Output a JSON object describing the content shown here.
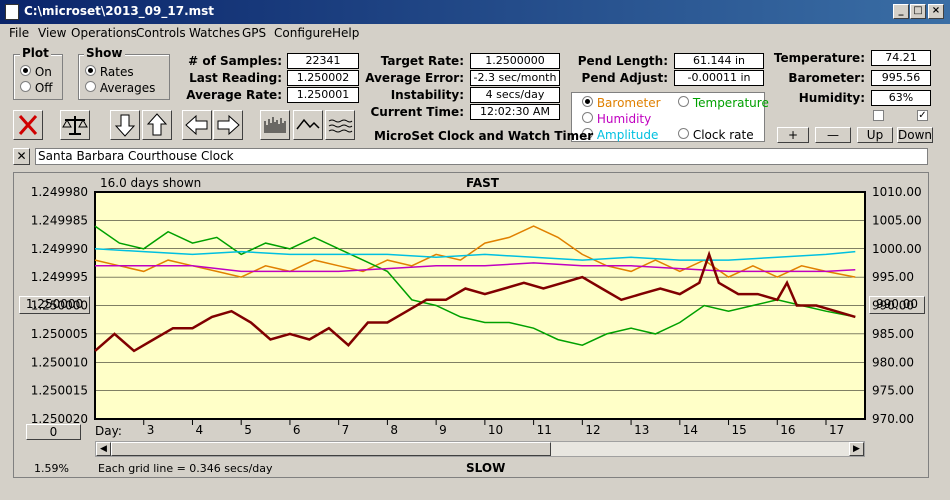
{
  "window": {
    "title": "C:\\microset\\2013_09_17.mst"
  },
  "menu": [
    "File",
    "View",
    "Operations",
    "Controls",
    "Watches",
    "GPS",
    "Configure",
    "Help"
  ],
  "plot_group": {
    "title": "Plot",
    "on": "On",
    "off": "Off",
    "selected": "On"
  },
  "show_group": {
    "title": "Show",
    "rates": "Rates",
    "averages": "Averages",
    "selected": "Rates"
  },
  "stats": {
    "samples_label": "# of Samples:",
    "samples": "22341",
    "last_label": "Last Reading:",
    "last": "1.250002",
    "avg_label": "Average Rate:",
    "avg": "1.250001",
    "target_label": "Target Rate:",
    "target": "1.2500000",
    "avgerr_label": "Average Error:",
    "avgerr": "-2.3 sec/month",
    "instab_label": "Instability:",
    "instab": "4 secs/day",
    "time_label": "Current Time:",
    "time": "12:02:30 AM",
    "pendlen_label": "Pend Length:",
    "pendlen": "61.144 in",
    "pendadj_label": "Pend Adjust:",
    "pendadj": "-0.00011 in",
    "temp_label": "Temperature:",
    "temp": "74.21",
    "baro_label": "Barometer:",
    "baro": "995.56",
    "hum_label": "Humidity:",
    "hum": "63%"
  },
  "subtitle": "MicroSet Clock and Watch Timer",
  "aux": {
    "barometer": "Barometer",
    "temperature": "Temperature",
    "humidity": "Humidity",
    "amplitude": "Amplitude",
    "clockrate": "Clock rate"
  },
  "aux_colors": {
    "barometer": "#e08000",
    "temperature": "#00a000",
    "humidity": "#c000c0",
    "amplitude": "#00c0e0",
    "clockrate": "#000000"
  },
  "aux_buttons": {
    "plus": "+",
    "minus": "—",
    "up": "Up",
    "down": "Down"
  },
  "clock_name": "Santa Barbara Courthouse Clock",
  "chart_labels": {
    "days_shown": "16.0 days shown",
    "fast": "FAST",
    "slow": "SLOW",
    "center_left": "1.250000",
    "center_right": "990.00",
    "zero_btn": "0",
    "pct": "1.59%",
    "grid_note": "Each grid line = 0.346 secs/day",
    "day_label": "Day:"
  },
  "chart_data": {
    "type": "line",
    "x_ticks": [
      "3",
      "4",
      "5",
      "6",
      "7",
      "8",
      "9",
      "10",
      "11",
      "12",
      "13",
      "14",
      "15",
      "16",
      "17"
    ],
    "y_left_ticks": [
      "1.249980",
      "1.249985",
      "1.249990",
      "1.249995",
      "1.250000",
      "1.250005",
      "1.250010",
      "1.250015",
      "1.250020"
    ],
    "y_right_ticks": [
      "1010.00",
      "1005.00",
      "1000.00",
      "995.00",
      "990.00",
      "985.00",
      "980.00",
      "975.00",
      "970.00"
    ],
    "xlim": [
      2.0,
      17.8
    ],
    "ylim_left": [
      1.24998,
      1.25002
    ],
    "ylim_right": [
      970,
      1010
    ],
    "background": "#ffffc8",
    "series": [
      {
        "name": "Barometer",
        "color": "#e08000",
        "axis": "right",
        "x": [
          2.0,
          2.5,
          3,
          3.5,
          4,
          4.5,
          5,
          5.5,
          6,
          6.5,
          7,
          7.5,
          8,
          8.5,
          9,
          9.5,
          10,
          10.5,
          11,
          11.5,
          12,
          12.5,
          13,
          13.5,
          14,
          14.5,
          15,
          15.5,
          16,
          16.5,
          17,
          17.6
        ],
        "values": [
          998,
          997,
          996,
          998,
          997,
          996,
          995,
          997,
          996,
          998,
          997,
          996,
          998,
          997,
          999,
          998,
          1001,
          1002,
          1004,
          1002,
          999,
          997,
          996,
          998,
          996,
          998,
          995,
          997,
          995,
          997,
          996,
          995
        ]
      },
      {
        "name": "Temperature",
        "color": "#00a000",
        "axis": "right",
        "x": [
          2.0,
          2.5,
          3,
          3.5,
          4,
          4.5,
          5,
          5.5,
          6,
          6.5,
          7,
          7.5,
          8,
          8.5,
          9,
          9.5,
          10,
          10.5,
          11,
          11.5,
          12,
          12.5,
          13,
          13.5,
          14,
          14.5,
          15,
          15.5,
          16,
          16.5,
          17,
          17.6
        ],
        "values": [
          1004,
          1001,
          1000,
          1003,
          1001,
          1002,
          999,
          1001,
          1000,
          1002,
          1000,
          998,
          996,
          991,
          990,
          988,
          987,
          987,
          986,
          984,
          983,
          985,
          986,
          985,
          987,
          990,
          989,
          990,
          991,
          990,
          989,
          988
        ]
      },
      {
        "name": "Humidity",
        "color": "#c000c0",
        "axis": "right",
        "x": [
          2.0,
          3,
          4,
          5,
          6,
          7,
          8,
          9,
          10,
          11,
          12,
          13,
          14,
          15,
          16,
          17,
          17.6
        ],
        "values": [
          997,
          997,
          997,
          996,
          996,
          996,
          996.5,
          997,
          997,
          997.5,
          997,
          997,
          996.5,
          996,
          996,
          996,
          996.3
        ]
      },
      {
        "name": "Amplitude",
        "color": "#00c0e0",
        "axis": "right",
        "x": [
          2.0,
          3,
          4,
          5,
          6,
          7,
          8,
          9,
          10,
          11,
          12,
          13,
          14,
          15,
          16,
          17,
          17.6
        ],
        "values": [
          1000,
          999.5,
          999,
          999.5,
          999,
          999,
          999,
          998.5,
          999,
          998.5,
          998,
          998.5,
          998,
          998,
          998.5,
          999,
          999.5
        ]
      },
      {
        "name": "Clock rate",
        "color": "#800000",
        "axis": "left",
        "x": [
          2.0,
          2.4,
          2.8,
          3.2,
          3.6,
          4,
          4.4,
          4.8,
          5.2,
          5.6,
          6,
          6.4,
          6.8,
          7.2,
          7.6,
          8,
          8.4,
          8.8,
          9.2,
          9.6,
          10,
          10.4,
          10.8,
          11.2,
          11.6,
          12,
          12.4,
          12.8,
          13.2,
          13.6,
          14,
          14.4,
          14.6,
          14.8,
          15.2,
          15.6,
          16,
          16.2,
          16.4,
          16.8,
          17.2,
          17.6
        ],
        "values": [
          1.250008,
          1.250005,
          1.250008,
          1.250006,
          1.250004,
          1.250004,
          1.250002,
          1.250001,
          1.250003,
          1.250006,
          1.250005,
          1.250006,
          1.250004,
          1.250007,
          1.250003,
          1.250003,
          1.250001,
          1.249999,
          1.249999,
          1.249997,
          1.249998,
          1.249997,
          1.249996,
          1.249997,
          1.249996,
          1.249995,
          1.249997,
          1.249999,
          1.249998,
          1.249997,
          1.249998,
          1.249996,
          1.249991,
          1.249996,
          1.249998,
          1.249998,
          1.249999,
          1.249996,
          1.25,
          1.25,
          1.250001,
          1.250002
        ]
      }
    ]
  }
}
